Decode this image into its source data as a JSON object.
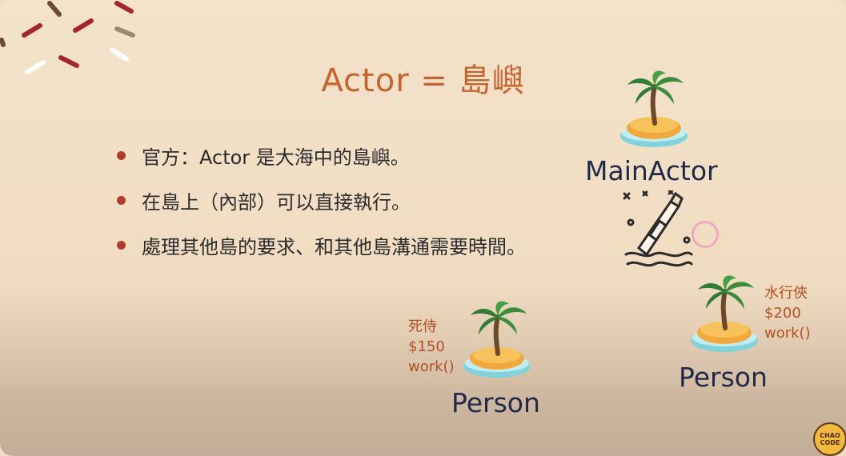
{
  "title": "Actor = 島嶼",
  "bullets": [
    "官方：Actor 是大海中的島嶼。",
    "在島上（內部）可以直接執行。",
    "處理其他島的要求、和其他島溝通需要時間。"
  ],
  "main_actor": {
    "label": "MainActor",
    "icon": "island-palm-icon"
  },
  "message_bottle": {
    "icon": "message-in-bottle-icon"
  },
  "persons": [
    {
      "label": "Person",
      "name": "死侍",
      "price": "$150",
      "method": "work()",
      "icon": "island-palm-icon"
    },
    {
      "label": "Person",
      "name": "水行俠",
      "price": "$200",
      "method": "work()",
      "icon": "island-palm-icon"
    }
  ],
  "logo": {
    "text": "CHAO CODE"
  },
  "colors": {
    "title": "#c8632c",
    "bullet_dot": "#b33a2e",
    "label": "#1e2a47",
    "note": "#b34f26"
  }
}
